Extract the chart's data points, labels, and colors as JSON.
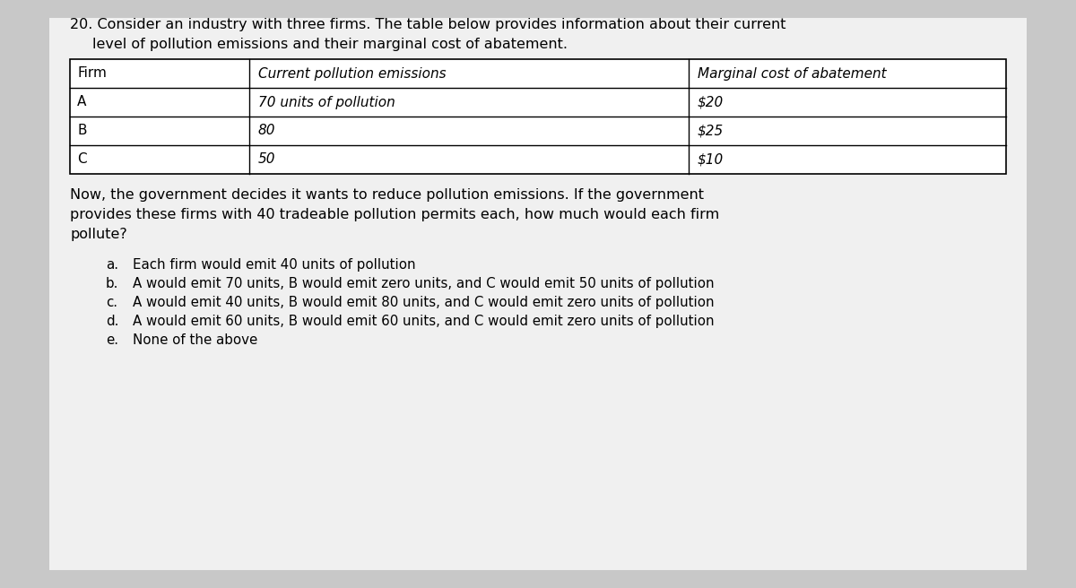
{
  "bg_color": "#c8c8c8",
  "white_box_color": "#f0f0f0",
  "question_number": "20.",
  "title_line1": "Consider an industry with three firms. The table below provides information about their current",
  "title_line2": "level of pollution emissions and their marginal cost of abatement.",
  "table_col0_header": "Firm",
  "table_col1_header": "Current pollution emissions",
  "table_col2_header": "Marginal cost of abatement",
  "table_rows": [
    [
      "A",
      "70 units of pollution",
      "$20"
    ],
    [
      "B",
      "80",
      "$25"
    ],
    [
      "C",
      "50",
      "$10"
    ]
  ],
  "para_line1": "Now, the government decides it wants to reduce pollution emissions. If the government",
  "para_line2": "provides these firms with 40 tradeable pollution permits each, how much would each firm",
  "para_line3": "pollute?",
  "choice_a_label": "a.",
  "choice_a_text": "Each firm would emit 40 units of pollution",
  "choice_b_label": "b.",
  "choice_b_text": "A would emit 70 units, B would emit zero units, and C would emit 50 units of pollution",
  "choice_c_label": "c.",
  "choice_c_text": "A would emit 40 units, B would emit 80 units, and C would emit zero units of pollution",
  "choice_d_label": "d.",
  "choice_d_text": "A would emit 60 units, B would emit 60 units, and C would emit zero units of pollution",
  "choice_e_label": "e.",
  "choice_e_text": "None of the above",
  "font_size_title": 11.5,
  "font_size_table_header": 11.0,
  "font_size_table_data": 11.0,
  "font_size_body": 11.5,
  "font_size_choices": 10.8,
  "text_color": "#000000",
  "figw": 12.0,
  "figh": 6.56
}
